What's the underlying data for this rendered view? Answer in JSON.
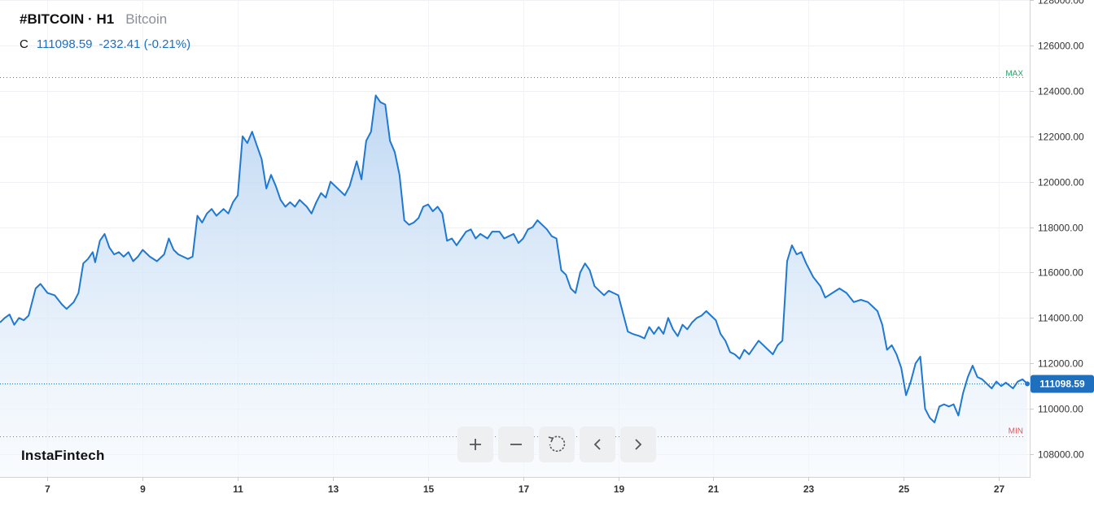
{
  "header": {
    "symbol": "#BITCOIN · H1",
    "description": "Bitcoin"
  },
  "ohlc": {
    "label": "C",
    "value": "111098.59",
    "change": "-232.41 (-0.21%)"
  },
  "brand": "InstaFintech",
  "toolbar": [
    {
      "name": "zoom-in-button",
      "icon": "plus-icon"
    },
    {
      "name": "zoom-out-button",
      "icon": "minus-icon"
    },
    {
      "name": "reset-button",
      "icon": "reset-icon"
    },
    {
      "name": "scroll-left-button",
      "icon": "chevron-left-icon"
    },
    {
      "name": "scroll-right-button",
      "icon": "chevron-right-icon"
    }
  ],
  "colors": {
    "line": "#1f78d1",
    "area_top": "#bcd6f2",
    "area_bottom": "#f5f9fe",
    "max_line": "#2e9e6a",
    "min_line": "#e0555a",
    "price_badge": "#1f6fbf"
  },
  "chart_data": {
    "type": "area",
    "ylim": [
      107000,
      128000
    ],
    "xlim": [
      6,
      27.65
    ],
    "y_ticks": [
      "108000.00",
      "110000.00",
      "112000.00",
      "114000.00",
      "116000.00",
      "118000.00",
      "120000.00",
      "122000.00",
      "124000.00",
      "126000.00",
      "128000.00"
    ],
    "x_ticks": [
      {
        "label": "7",
        "x": 7
      },
      {
        "label": "9",
        "x": 9
      },
      {
        "label": "11",
        "x": 11
      },
      {
        "label": "13",
        "x": 13
      },
      {
        "label": "15",
        "x": 15
      },
      {
        "label": "17",
        "x": 17
      },
      {
        "label": "19",
        "x": 19
      },
      {
        "label": "21",
        "x": 21
      },
      {
        "label": "23",
        "x": 23
      },
      {
        "label": "25",
        "x": 25
      },
      {
        "label": "27",
        "x": 27
      }
    ],
    "max_label": "MAX",
    "min_label": "MIN",
    "max_value": 124600,
    "min_value": 108800,
    "last_price": 111098.59,
    "last_price_label": "111098.59",
    "series": [
      {
        "points": [
          [
            6.0,
            113800
          ],
          [
            6.1,
            114000
          ],
          [
            6.2,
            114150
          ],
          [
            6.3,
            113700
          ],
          [
            6.4,
            114000
          ],
          [
            6.5,
            113900
          ],
          [
            6.6,
            114100
          ],
          [
            6.75,
            115300
          ],
          [
            6.85,
            115500
          ],
          [
            7.0,
            115100
          ],
          [
            7.15,
            115000
          ],
          [
            7.3,
            114600
          ],
          [
            7.4,
            114400
          ],
          [
            7.55,
            114700
          ],
          [
            7.65,
            115100
          ],
          [
            7.75,
            116400
          ],
          [
            7.85,
            116600
          ],
          [
            7.95,
            116900
          ],
          [
            8.0,
            116450
          ],
          [
            8.1,
            117400
          ],
          [
            8.2,
            117700
          ],
          [
            8.3,
            117100
          ],
          [
            8.4,
            116800
          ],
          [
            8.5,
            116900
          ],
          [
            8.6,
            116700
          ],
          [
            8.7,
            116900
          ],
          [
            8.8,
            116500
          ],
          [
            8.9,
            116700
          ],
          [
            9.0,
            117000
          ],
          [
            9.15,
            116700
          ],
          [
            9.3,
            116500
          ],
          [
            9.45,
            116800
          ],
          [
            9.55,
            117500
          ],
          [
            9.65,
            117000
          ],
          [
            9.75,
            116800
          ],
          [
            9.85,
            116700
          ],
          [
            9.95,
            116600
          ],
          [
            10.05,
            116700
          ],
          [
            10.15,
            118500
          ],
          [
            10.25,
            118200
          ],
          [
            10.35,
            118600
          ],
          [
            10.45,
            118800
          ],
          [
            10.55,
            118500
          ],
          [
            10.7,
            118800
          ],
          [
            10.8,
            118600
          ],
          [
            10.9,
            119100
          ],
          [
            11.0,
            119400
          ],
          [
            11.1,
            122000
          ],
          [
            11.2,
            121700
          ],
          [
            11.3,
            122200
          ],
          [
            11.4,
            121600
          ],
          [
            11.5,
            121000
          ],
          [
            11.6,
            119700
          ],
          [
            11.7,
            120300
          ],
          [
            11.8,
            119800
          ],
          [
            11.9,
            119200
          ],
          [
            12.0,
            118900
          ],
          [
            12.1,
            119100
          ],
          [
            12.2,
            118900
          ],
          [
            12.3,
            119200
          ],
          [
            12.45,
            118900
          ],
          [
            12.55,
            118600
          ],
          [
            12.65,
            119100
          ],
          [
            12.75,
            119500
          ],
          [
            12.85,
            119300
          ],
          [
            12.95,
            120000
          ],
          [
            13.05,
            119800
          ],
          [
            13.15,
            119600
          ],
          [
            13.25,
            119400
          ],
          [
            13.35,
            119800
          ],
          [
            13.5,
            120900
          ],
          [
            13.6,
            120100
          ],
          [
            13.7,
            121800
          ],
          [
            13.8,
            122200
          ],
          [
            13.9,
            123800
          ],
          [
            14.0,
            123500
          ],
          [
            14.1,
            123400
          ],
          [
            14.2,
            121800
          ],
          [
            14.3,
            121300
          ],
          [
            14.4,
            120300
          ],
          [
            14.5,
            118300
          ],
          [
            14.6,
            118100
          ],
          [
            14.7,
            118200
          ],
          [
            14.8,
            118400
          ],
          [
            14.9,
            118900
          ],
          [
            15.0,
            119000
          ],
          [
            15.1,
            118700
          ],
          [
            15.2,
            118900
          ],
          [
            15.3,
            118600
          ],
          [
            15.4,
            117400
          ],
          [
            15.5,
            117500
          ],
          [
            15.6,
            117200
          ],
          [
            15.7,
            117500
          ],
          [
            15.8,
            117800
          ],
          [
            15.9,
            117900
          ],
          [
            16.0,
            117500
          ],
          [
            16.1,
            117700
          ],
          [
            16.25,
            117500
          ],
          [
            16.35,
            117800
          ],
          [
            16.5,
            117800
          ],
          [
            16.6,
            117500
          ],
          [
            16.7,
            117600
          ],
          [
            16.8,
            117700
          ],
          [
            16.9,
            117300
          ],
          [
            17.0,
            117500
          ],
          [
            17.1,
            117900
          ],
          [
            17.2,
            118000
          ],
          [
            17.3,
            118300
          ],
          [
            17.4,
            118100
          ],
          [
            17.5,
            117900
          ],
          [
            17.6,
            117600
          ],
          [
            17.7,
            117500
          ],
          [
            17.8,
            116100
          ],
          [
            17.9,
            115900
          ],
          [
            18.0,
            115300
          ],
          [
            18.1,
            115100
          ],
          [
            18.2,
            116000
          ],
          [
            18.3,
            116400
          ],
          [
            18.4,
            116100
          ],
          [
            18.5,
            115400
          ],
          [
            18.6,
            115200
          ],
          [
            18.7,
            115000
          ],
          [
            18.8,
            115200
          ],
          [
            18.9,
            115100
          ],
          [
            19.0,
            115000
          ],
          [
            19.1,
            114200
          ],
          [
            19.2,
            113400
          ],
          [
            19.3,
            113300
          ],
          [
            19.45,
            113200
          ],
          [
            19.55,
            113100
          ],
          [
            19.65,
            113600
          ],
          [
            19.75,
            113300
          ],
          [
            19.85,
            113600
          ],
          [
            19.95,
            113300
          ],
          [
            20.05,
            114000
          ],
          [
            20.15,
            113500
          ],
          [
            20.25,
            113200
          ],
          [
            20.35,
            113700
          ],
          [
            20.45,
            113500
          ],
          [
            20.55,
            113800
          ],
          [
            20.65,
            114000
          ],
          [
            20.75,
            114100
          ],
          [
            20.85,
            114300
          ],
          [
            20.95,
            114100
          ],
          [
            21.05,
            113900
          ],
          [
            21.15,
            113300
          ],
          [
            21.25,
            113000
          ],
          [
            21.35,
            112500
          ],
          [
            21.45,
            112400
          ],
          [
            21.55,
            112200
          ],
          [
            21.65,
            112600
          ],
          [
            21.75,
            112400
          ],
          [
            21.85,
            112700
          ],
          [
            21.95,
            113000
          ],
          [
            22.1,
            112700
          ],
          [
            22.25,
            112400
          ],
          [
            22.35,
            112800
          ],
          [
            22.45,
            113000
          ],
          [
            22.55,
            116500
          ],
          [
            22.65,
            117200
          ],
          [
            22.75,
            116800
          ],
          [
            22.85,
            116900
          ],
          [
            22.95,
            116400
          ],
          [
            23.1,
            115800
          ],
          [
            23.25,
            115400
          ],
          [
            23.35,
            114900
          ],
          [
            23.5,
            115100
          ],
          [
            23.65,
            115300
          ],
          [
            23.8,
            115100
          ],
          [
            23.95,
            114700
          ],
          [
            24.1,
            114800
          ],
          [
            24.25,
            114700
          ],
          [
            24.35,
            114500
          ],
          [
            24.45,
            114300
          ],
          [
            24.55,
            113700
          ],
          [
            24.65,
            112600
          ],
          [
            24.75,
            112800
          ],
          [
            24.85,
            112400
          ],
          [
            24.95,
            111800
          ],
          [
            25.05,
            110600
          ],
          [
            25.15,
            111200
          ],
          [
            25.25,
            112000
          ],
          [
            25.35,
            112300
          ],
          [
            25.45,
            110000
          ],
          [
            25.55,
            109600
          ],
          [
            25.65,
            109400
          ],
          [
            25.75,
            110100
          ],
          [
            25.85,
            110200
          ],
          [
            25.95,
            110100
          ],
          [
            26.05,
            110200
          ],
          [
            26.15,
            109700
          ],
          [
            26.25,
            110700
          ],
          [
            26.35,
            111400
          ],
          [
            26.45,
            111900
          ],
          [
            26.55,
            111400
          ],
          [
            26.65,
            111300
          ],
          [
            26.75,
            111100
          ],
          [
            26.85,
            110900
          ],
          [
            26.95,
            111200
          ],
          [
            27.05,
            111000
          ],
          [
            27.15,
            111150
          ],
          [
            27.3,
            110900
          ],
          [
            27.4,
            111200
          ],
          [
            27.5,
            111300
          ],
          [
            27.6,
            111100
          ]
        ]
      }
    ]
  }
}
